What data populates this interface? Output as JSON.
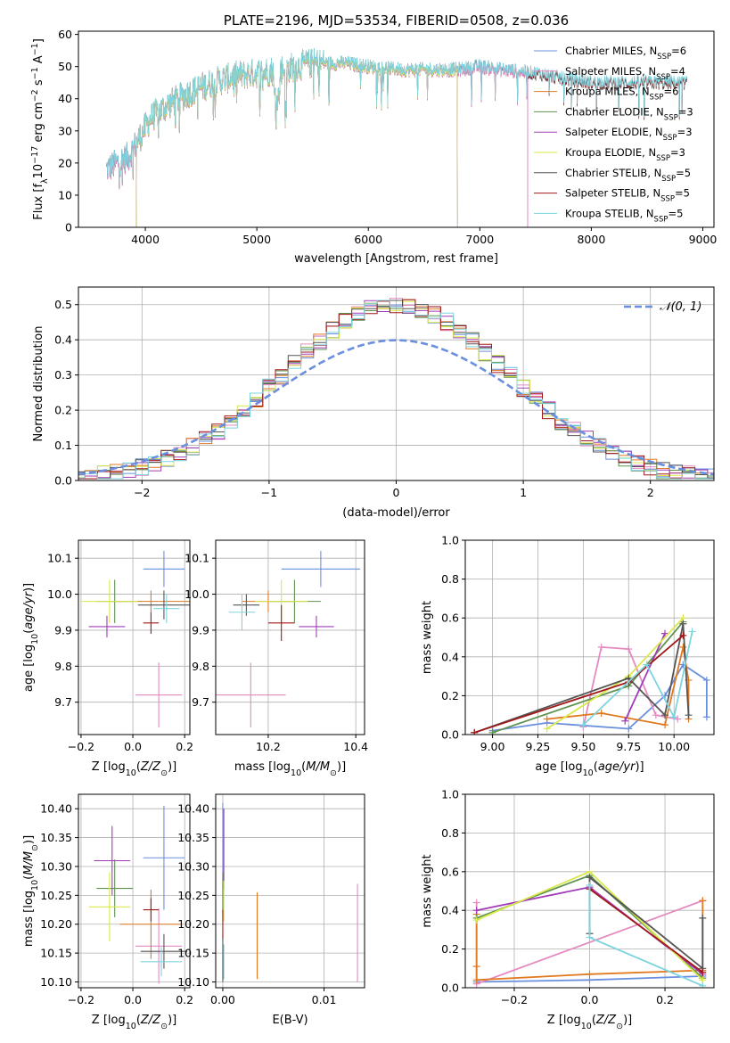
{
  "colors": {
    "Chabrier MILES": "#6a8fde",
    "Salpeter MILES": "#e58ac0",
    "Kroupa MILES": "#e07920",
    "Chabrier ELODIE": "#5f9250",
    "Salpeter ELODIE": "#a23cb8",
    "Kroupa ELODIE": "#d9e84a",
    "Chabrier STELIB": "#555555",
    "Salpeter STELIB": "#a01818",
    "Kroupa STELIB": "#7ed4de",
    "normal_curve": "#6a8fde"
  },
  "chart_data": [
    {
      "id": "spectrum",
      "type": "line",
      "title": "PLATE=2196, MJD=53534, FIBERID=0508, z=0.036",
      "xlabel": "wavelength [Angstrom, rest frame]",
      "ylabel": "Flux [f",
      "ylabel_parts": [
        "Flux [f",
        "λ",
        "10",
        "−17",
        " erg cm",
        "−2",
        " s",
        "−1",
        " A",
        "−1",
        "]"
      ],
      "xlim": [
        3400,
        9100
      ],
      "ylim": [
        0,
        61
      ],
      "xticks": [
        4000,
        5000,
        6000,
        7000,
        8000,
        9000
      ],
      "yticks": [
        0,
        10,
        20,
        30,
        40,
        50,
        60
      ],
      "legend": [
        {
          "model": "Chabrier MILES",
          "label": "Chabrier MILES, N",
          "sub": "SSP",
          "n": "=6"
        },
        {
          "model": "Salpeter MILES",
          "label": "Salpeter MILES, N",
          "sub": "SSP",
          "n": "=4"
        },
        {
          "model": "Kroupa MILES",
          "label": "Kroupa MILES, N",
          "sub": "SSP",
          "n": "=6"
        },
        {
          "model": "Chabrier ELODIE",
          "label": "Chabrier ELODIE, N",
          "sub": "SSP",
          "n": "=3"
        },
        {
          "model": "Salpeter ELODIE",
          "label": "Salpeter ELODIE, N",
          "sub": "SSP",
          "n": "=3"
        },
        {
          "model": "Kroupa ELODIE",
          "label": "Kroupa ELODIE, N",
          "sub": "SSP",
          "n": "=3"
        },
        {
          "model": "Chabrier STELIB",
          "label": "Chabrier STELIB, N",
          "sub": "SSP",
          "n": "=5"
        },
        {
          "model": "Salpeter STELIB",
          "label": "Salpeter STELIB, N",
          "sub": "SSP",
          "n": "=5"
        },
        {
          "model": "Kroupa STELIB",
          "label": "Kroupa STELIB, N",
          "sub": "SSP",
          "n": "=5"
        }
      ],
      "continuum": [
        [
          3650,
          18
        ],
        [
          3750,
          20
        ],
        [
          3850,
          22
        ],
        [
          3950,
          28
        ],
        [
          4050,
          34
        ],
        [
          4200,
          38
        ],
        [
          4400,
          42
        ],
        [
          4600,
          45
        ],
        [
          4800,
          47
        ],
        [
          5000,
          48
        ],
        [
          5200,
          49
        ],
        [
          5500,
          51
        ],
        [
          5800,
          51
        ],
        [
          6000,
          50
        ],
        [
          6300,
          49
        ],
        [
          6600,
          49
        ],
        [
          6800,
          49
        ],
        [
          7000,
          50
        ],
        [
          7200,
          49
        ],
        [
          7500,
          48
        ],
        [
          7800,
          46
        ],
        [
          8000,
          45
        ],
        [
          8300,
          45
        ],
        [
          8600,
          45
        ],
        [
          8850,
          45
        ]
      ],
      "spans": {
        "MILES": [
          3650,
          7430
        ],
        "ELODIE": [
          3920,
          6800
        ],
        "STELIB": [
          3650,
          8860
        ]
      }
    },
    {
      "id": "residuals",
      "type": "histogram",
      "xlabel": "(data-model)/error",
      "ylabel": "Normed distribution",
      "xlim": [
        -2.5,
        2.5
      ],
      "ylim": [
        0,
        0.55
      ],
      "xticks": [
        -2,
        -1,
        0,
        1,
        2
      ],
      "yticks": [
        0.0,
        0.1,
        0.2,
        0.3,
        0.4,
        0.5
      ],
      "legend_label": "𝒩(0, 1)",
      "bin_width": 0.1
    },
    {
      "id": "age_vs_Z",
      "type": "scatter",
      "xlabel": "Z [log10(Z/Z⊙)]",
      "ylabel": "age  [log10(age/yr)]",
      "xlim": [
        -0.21,
        0.22
      ],
      "ylim": [
        9.61,
        10.15
      ],
      "xticks": [
        -0.2,
        0.0,
        0.2
      ],
      "yticks": [
        9.7,
        9.8,
        9.9,
        10.0,
        10.1
      ],
      "points": [
        {
          "model": "Chabrier MILES",
          "x": 0.12,
          "xerr": 0.08,
          "y": 10.07,
          "yerr": 0.05
        },
        {
          "model": "Salpeter MILES",
          "x": 0.1,
          "xerr": 0.09,
          "y": 9.72,
          "yerr": 0.09
        },
        {
          "model": "Kroupa MILES",
          "x": 0.07,
          "xerr": 0.15,
          "y": 9.98,
          "yerr": 0.03
        },
        {
          "model": "Chabrier ELODIE",
          "x": -0.07,
          "xerr": 0.07,
          "y": 9.98,
          "yerr": 0.06
        },
        {
          "model": "Salpeter ELODIE",
          "x": -0.1,
          "xerr": 0.07,
          "y": 9.91,
          "yerr": 0.03
        },
        {
          "model": "Kroupa ELODIE",
          "x": -0.09,
          "xerr": 0.11,
          "y": 9.98,
          "yerr": 0.06
        },
        {
          "model": "Chabrier STELIB",
          "x": 0.12,
          "xerr": 0.1,
          "y": 9.97,
          "yerr": 0.04
        },
        {
          "model": "Salpeter STELIB",
          "x": 0.07,
          "xerr": 0.03,
          "y": 9.92,
          "yerr": 0.03
        },
        {
          "model": "Kroupa STELIB",
          "x": 0.13,
          "xerr": 0.05,
          "y": 9.96,
          "yerr": 0.04
        }
      ]
    },
    {
      "id": "age_vs_mass",
      "type": "scatter",
      "xlabel": "mass [log10(M/M⊙)]",
      "ylabel": "",
      "xlim": [
        10.08,
        10.42
      ],
      "ylim": [
        9.61,
        10.15
      ],
      "xticks": [
        10.2,
        10.4
      ],
      "yticks": [
        9.7,
        9.8,
        9.9,
        10.0,
        10.1
      ],
      "points": [
        {
          "model": "Chabrier MILES",
          "x": 10.32,
          "xerr": 0.09,
          "y": 10.07,
          "yerr": 0.05
        },
        {
          "model": "Salpeter MILES",
          "x": 10.16,
          "xerr": 0.08,
          "y": 9.72,
          "yerr": 0.09
        },
        {
          "model": "Kroupa MILES",
          "x": 10.2,
          "xerr": 0.06,
          "y": 9.98,
          "yerr": 0.03
        },
        {
          "model": "Chabrier ELODIE",
          "x": 10.26,
          "xerr": 0.06,
          "y": 9.98,
          "yerr": 0.06
        },
        {
          "model": "Salpeter ELODIE",
          "x": 10.31,
          "xerr": 0.04,
          "y": 9.91,
          "yerr": 0.03
        },
        {
          "model": "Kroupa ELODIE",
          "x": 10.23,
          "xerr": 0.06,
          "y": 9.98,
          "yerr": 0.06
        },
        {
          "model": "Chabrier STELIB",
          "x": 10.15,
          "xerr": 0.03,
          "y": 9.97,
          "yerr": 0.03
        },
        {
          "model": "Salpeter STELIB",
          "x": 10.23,
          "xerr": 0.03,
          "y": 9.92,
          "yerr": 0.05
        },
        {
          "model": "Kroupa STELIB",
          "x": 10.14,
          "xerr": 0.03,
          "y": 9.95,
          "yerr": 0.05
        }
      ]
    },
    {
      "id": "mass_vs_Z",
      "type": "scatter",
      "xlabel": "Z [log10(Z/Z⊙)]",
      "ylabel": "mass [log10(M/M⊙)]",
      "xlim": [
        -0.21,
        0.22
      ],
      "ylim": [
        10.09,
        10.425
      ],
      "xticks": [
        -0.2,
        0.0,
        0.2
      ],
      "yticks": [
        10.1,
        10.15,
        10.2,
        10.25,
        10.3,
        10.35,
        10.4
      ],
      "points": [
        {
          "model": "Chabrier MILES",
          "x": 0.12,
          "xerr": 0.08,
          "y": 10.315,
          "yerr": 0.09
        },
        {
          "model": "Salpeter MILES",
          "x": 0.1,
          "xerr": 0.09,
          "y": 10.162,
          "yerr": 0.065
        },
        {
          "model": "Kroupa MILES",
          "x": 0.07,
          "xerr": 0.12,
          "y": 10.2,
          "yerr": 0.06
        },
        {
          "model": "Chabrier ELODIE",
          "x": -0.07,
          "xerr": 0.07,
          "y": 10.262,
          "yerr": 0.05
        },
        {
          "model": "Salpeter ELODIE",
          "x": -0.08,
          "xerr": 0.07,
          "y": 10.31,
          "yerr": 0.06
        },
        {
          "model": "Kroupa ELODIE",
          "x": -0.09,
          "xerr": 0.08,
          "y": 10.23,
          "yerr": 0.06
        },
        {
          "model": "Chabrier STELIB",
          "x": 0.12,
          "xerr": 0.09,
          "y": 10.153,
          "yerr": 0.03
        },
        {
          "model": "Salpeter STELIB",
          "x": 0.07,
          "xerr": 0.03,
          "y": 10.225,
          "yerr": 0.02
        },
        {
          "model": "Kroupa STELIB",
          "x": 0.11,
          "xerr": 0.08,
          "y": 10.135,
          "yerr": 0.025
        }
      ]
    },
    {
      "id": "mass_vs_ebv",
      "type": "scatter",
      "xlabel": "E(B-V)",
      "ylabel": "",
      "xlim": [
        -0.0007,
        0.014
      ],
      "ylim": [
        10.09,
        10.425
      ],
      "xticks": [
        0.0,
        0.01
      ],
      "yticks": [
        10.1,
        10.15,
        10.2,
        10.25,
        10.3,
        10.35,
        10.4
      ],
      "points": [
        {
          "model": "Chabrier MILES",
          "x": 0.0,
          "y": 10.315,
          "yerr": 0.095
        },
        {
          "model": "Salpeter MILES",
          "x": 0.0133,
          "y": 10.185,
          "yerr": 0.085
        },
        {
          "model": "Kroupa MILES",
          "x": 0.0034,
          "y": 10.18,
          "yerr": 0.075
        },
        {
          "model": "Chabrier ELODIE",
          "x": 0.0,
          "y": 10.25,
          "yerr": 0.04
        },
        {
          "model": "Salpeter ELODIE",
          "x": 0.0001,
          "y": 10.33,
          "yerr": 0.07
        },
        {
          "model": "Kroupa ELODIE",
          "x": 0.0001,
          "y": 10.24,
          "yerr": 0.035
        },
        {
          "model": "Chabrier STELIB",
          "x": 0.0,
          "y": 10.14,
          "yerr": 0.04
        },
        {
          "model": "Salpeter STELIB",
          "x": 0.0,
          "y": 10.2,
          "yerr": 0.025
        },
        {
          "model": "Kroupa STELIB",
          "x": 0.0001,
          "y": 10.135,
          "yerr": 0.03
        }
      ]
    },
    {
      "id": "weight_vs_age",
      "type": "line",
      "xlabel": "age  [log10(age/yr)]",
      "ylabel": "mass weight",
      "xlim": [
        8.85,
        10.22
      ],
      "ylim": [
        0,
        1
      ],
      "xticks": [
        9.0,
        9.25,
        9.5,
        9.75,
        10.0
      ],
      "yticks": [
        0.0,
        0.2,
        0.4,
        0.6,
        0.8,
        1.0
      ],
      "series": [
        {
          "model": "Chabrier MILES",
          "x": [
            9.0,
            9.3,
            9.75,
            9.95,
            10.05,
            10.18,
            10.18
          ],
          "y": [
            0.02,
            0.06,
            0.03,
            0.2,
            0.36,
            0.28,
            0.09
          ]
        },
        {
          "model": "Salpeter MILES",
          "x": [
            9.5,
            9.6,
            9.75,
            9.9,
            10.02
          ],
          "y": [
            0.04,
            0.45,
            0.44,
            0.1,
            0.08
          ]
        },
        {
          "model": "Kroupa MILES",
          "x": [
            9.3,
            9.6,
            9.95,
            10.05,
            10.08,
            10.08
          ],
          "y": [
            0.08,
            0.11,
            0.05,
            0.45,
            0.28,
            0.08
          ]
        },
        {
          "model": "Chabrier ELODIE",
          "x": [
            9.0,
            9.75,
            10.05
          ],
          "y": [
            0.01,
            0.25,
            0.58
          ]
        },
        {
          "model": "Salpeter ELODIE",
          "x": [
            9.73,
            9.95
          ],
          "y": [
            0.07,
            0.52
          ]
        },
        {
          "model": "Kroupa ELODIE",
          "x": [
            9.3,
            9.75,
            10.05
          ],
          "y": [
            0.03,
            0.3,
            0.6
          ]
        },
        {
          "model": "Chabrier STELIB",
          "x": [
            8.9,
            9.75,
            9.95,
            10.05,
            10.08
          ],
          "y": [
            0.01,
            0.29,
            0.1,
            0.57,
            0.1
          ]
        },
        {
          "model": "Salpeter STELIB",
          "x": [
            8.9,
            9.75,
            10.05
          ],
          "y": [
            0.01,
            0.27,
            0.51
          ]
        },
        {
          "model": "Kroupa STELIB",
          "x": [
            9.5,
            9.85,
            10.0,
            10.1
          ],
          "y": [
            0.05,
            0.36,
            0.09,
            0.53
          ]
        }
      ]
    },
    {
      "id": "weight_vs_Z",
      "type": "line",
      "xlabel": "Z [log10(Z/Z⊙)]",
      "ylabel": "mass weight",
      "xlim": [
        -0.33,
        0.33
      ],
      "ylim": [
        0,
        1
      ],
      "xticks": [
        -0.2,
        0.0,
        0.2
      ],
      "yticks": [
        0.0,
        0.2,
        0.4,
        0.6,
        0.8,
        1.0
      ],
      "series": [
        {
          "model": "Chabrier MILES",
          "x": [
            -0.3,
            0.0,
            0.3
          ],
          "y": [
            0.03,
            0.04,
            0.06
          ]
        },
        {
          "model": "Salpeter MILES",
          "x": [
            -0.3,
            -0.3,
            0.3
          ],
          "y": [
            0.44,
            0.02,
            0.45
          ]
        },
        {
          "model": "Kroupa MILES",
          "x": [
            -0.3,
            -0.3,
            -0.3,
            0.0,
            0.3,
            0.3
          ],
          "y": [
            0.38,
            0.11,
            0.04,
            0.07,
            0.09,
            0.45
          ]
        },
        {
          "model": "Chabrier ELODIE",
          "x": [
            -0.3,
            0.0,
            0.3
          ],
          "y": [
            0.36,
            0.58,
            0.05
          ]
        },
        {
          "model": "Salpeter ELODIE",
          "x": [
            -0.3,
            0.0,
            0.3
          ],
          "y": [
            0.4,
            0.52,
            0.07
          ]
        },
        {
          "model": "Kroupa ELODIE",
          "x": [
            -0.3,
            0.0,
            0.3
          ],
          "y": [
            0.35,
            0.6,
            0.04
          ]
        },
        {
          "model": "Chabrier STELIB",
          "x": [
            0.0,
            0.0,
            0.3,
            0.3
          ],
          "y": [
            0.28,
            0.57,
            0.1,
            0.36
          ]
        },
        {
          "model": "Salpeter STELIB",
          "x": [
            0.0,
            0.3
          ],
          "y": [
            0.51,
            0.08
          ]
        },
        {
          "model": "Kroupa STELIB",
          "x": [
            0.0,
            0.0,
            0.3
          ],
          "y": [
            0.53,
            0.26,
            0.01
          ]
        }
      ]
    }
  ]
}
